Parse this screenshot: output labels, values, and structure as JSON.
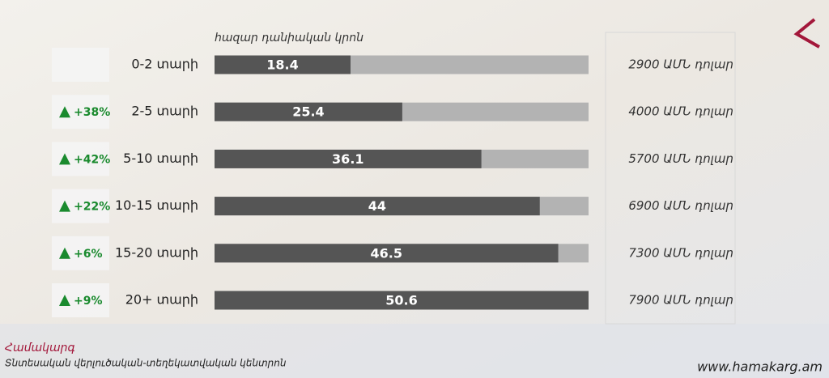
{
  "chart_data": {
    "type": "bar",
    "orientation": "horizontal",
    "unit_label": "հազար դանիական կրոն",
    "categories": [
      "0-2 տարի",
      "2-5 տարի",
      "5-10 տարի",
      "10-15 տարի",
      "15-20 տարի",
      "20+ տարի"
    ],
    "values": [
      18.4,
      25.4,
      36.1,
      44,
      46.5,
      50.6
    ],
    "xlim": [
      0,
      50.6
    ],
    "color": "#555555",
    "track_color": "#b3b3b3",
    "changes": [
      null,
      "+38%",
      "+42%",
      "+22%",
      "+6%",
      "+9%"
    ],
    "change_color": "#1a8a2e",
    "usd_labels": [
      "2900 ԱՄՆ դոլար",
      "4000 ԱՄՆ դոլար",
      "5700 ԱՄՆ դոլար",
      "6900 ԱՄՆ դոլար",
      "7300 ԱՄՆ դոլար",
      "7900 ԱՄՆ դոլար"
    ]
  },
  "footer": {
    "brand": "Համակարգ",
    "subtitle": "Տնտեսական վերլուծական-տեղեկատվական կենտրոն",
    "website": "www.hamakarg.am"
  }
}
